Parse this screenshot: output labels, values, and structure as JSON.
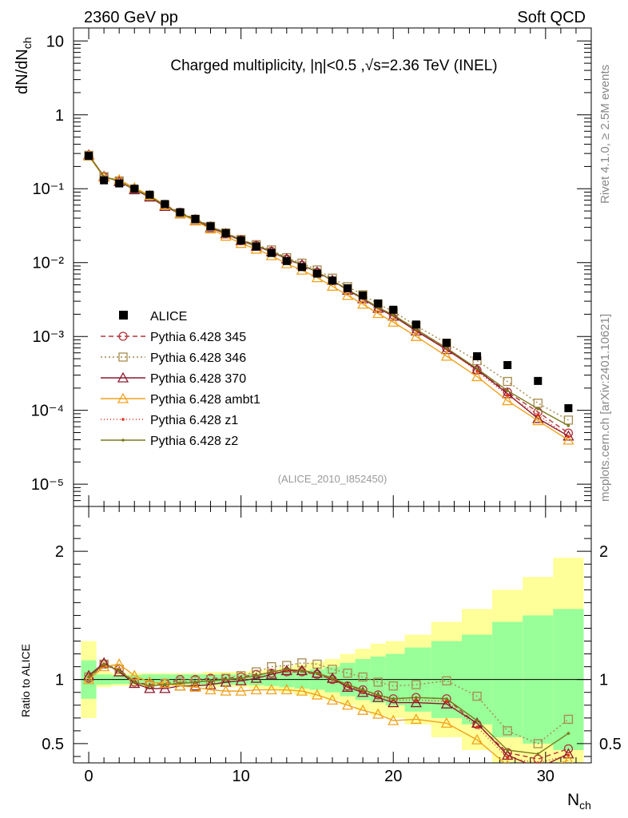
{
  "header": {
    "left": "2360 GeV pp",
    "right": "Soft QCD"
  },
  "side_text": {
    "top": "Rivet 4.1.0, ≥ 2.5M events",
    "bottom": "mcplots.cern.ch [arXiv:2401.10621]"
  },
  "chart_data": {
    "type": "line",
    "title": "Charged multiplicity, |η|<0.5 ,√s=2.36 TeV (INEL)",
    "analysis_id": "(ALICE_2010_I852450)",
    "xlabel": "N",
    "xlabel_sub": "ch",
    "ylabel": "dN/dN",
    "ylabel_sub": "ch",
    "ratio_ylabel": "Ratio to ALICE",
    "xlim": [
      -1,
      33
    ],
    "ylim": [
      5e-06,
      15
    ],
    "ratio_ylim": [
      0.35,
      2.35
    ],
    "x": [
      0,
      1,
      2,
      3,
      4,
      5,
      6,
      7,
      8,
      9,
      10,
      11,
      12,
      13,
      14,
      15,
      16,
      17,
      18,
      19,
      20,
      21.5,
      23.5,
      25.5,
      27.5,
      29.5,
      31.5
    ],
    "x_ticks": [
      "0",
      "10",
      "20",
      "30"
    ],
    "y_ticks": [
      "10",
      "1",
      "10⁻¹",
      "10⁻²",
      "10⁻³",
      "10⁻⁴",
      "10⁻⁵"
    ],
    "ratio_ticks": [
      "0.5",
      "1",
      "2"
    ],
    "data": {
      "name": "ALICE",
      "values": [
        0.278,
        0.13,
        0.118,
        0.1,
        0.083,
        0.062,
        0.048,
        0.039,
        0.031,
        0.025,
        0.02,
        0.0165,
        0.0135,
        0.0105,
        0.0087,
        0.0071,
        0.0057,
        0.0045,
        0.0036,
        0.0028,
        0.0023,
        0.00145,
        0.00082,
        0.00054,
        0.00041,
        0.00025,
        0.000107
      ],
      "band_inner": [
        0.15,
        0.04,
        0.035,
        0.035,
        0.04,
        0.04,
        0.04,
        0.04,
        0.04,
        0.04,
        0.04,
        0.045,
        0.05,
        0.06,
        0.07,
        0.08,
        0.1,
        0.13,
        0.16,
        0.18,
        0.2,
        0.25,
        0.3,
        0.35,
        0.45,
        0.5,
        0.55
      ],
      "band_outer": [
        0.3,
        0.06,
        0.05,
        0.05,
        0.05,
        0.05,
        0.05,
        0.05,
        0.06,
        0.06,
        0.06,
        0.07,
        0.08,
        0.1,
        0.12,
        0.14,
        0.16,
        0.2,
        0.24,
        0.28,
        0.3,
        0.35,
        0.45,
        0.55,
        0.7,
        0.8,
        0.95
      ]
    },
    "series": [
      {
        "name": "Pythia 6.428 345",
        "color": "#b2333a",
        "dash": "6,4",
        "marker": "circle",
        "ratio": [
          1.01,
          1.12,
          1.08,
          0.98,
          0.96,
          0.97,
          1.0,
          1.0,
          1.01,
          1.01,
          1.02,
          1.04,
          1.05,
          1.06,
          1.06,
          1.04,
          1.0,
          0.95,
          0.92,
          0.88,
          0.85,
          0.86,
          0.85,
          0.65,
          0.43,
          0.38,
          0.46
        ]
      },
      {
        "name": "Pythia 6.428 346",
        "color": "#a68a4d",
        "dash": "2,3",
        "marker": "square",
        "ratio": [
          1.02,
          1.12,
          1.08,
          0.97,
          0.96,
          0.97,
          0.98,
          0.99,
          1.0,
          1.01,
          1.03,
          1.06,
          1.1,
          1.11,
          1.13,
          1.12,
          1.08,
          1.05,
          1.02,
          0.98,
          0.95,
          0.96,
          0.99,
          0.87,
          0.6,
          0.5,
          0.69
        ]
      },
      {
        "name": "Pythia 6.428 370",
        "color": "#8a1a2e",
        "dash": "",
        "marker": "triangle",
        "ratio": [
          1.03,
          1.13,
          1.06,
          0.97,
          0.93,
          0.93,
          0.95,
          0.95,
          0.96,
          0.98,
          0.99,
          1.01,
          1.04,
          1.07,
          1.07,
          1.05,
          1.01,
          0.94,
          0.9,
          0.86,
          0.82,
          0.82,
          0.81,
          0.66,
          0.41,
          0.31,
          0.42
        ]
      },
      {
        "name": "Pythia 6.428 ambt1",
        "color": "#f0a21e",
        "dash": "",
        "marker": "triangle",
        "ratio": [
          1.0,
          1.1,
          1.12,
          1.03,
          0.98,
          0.97,
          0.95,
          0.94,
          0.92,
          0.91,
          0.91,
          0.92,
          0.92,
          0.92,
          0.91,
          0.88,
          0.84,
          0.8,
          0.76,
          0.73,
          0.68,
          0.69,
          0.66,
          0.53,
          0.33,
          0.29,
          0.37
        ]
      },
      {
        "name": "Pythia 6.428 z1",
        "color": "#e0301e",
        "dash": "1,3",
        "marker": "dot",
        "ratio": [
          1.02,
          1.11,
          1.07,
          0.98,
          0.95,
          0.96,
          0.97,
          0.98,
          0.99,
          1.0,
          1.01,
          1.03,
          1.06,
          1.07,
          1.07,
          1.05,
          1.0,
          0.95,
          0.91,
          0.87,
          0.84,
          0.84,
          0.83,
          0.63,
          0.39,
          0.35,
          0.41
        ]
      },
      {
        "name": "Pythia 6.428 z2",
        "color": "#7a7a1c",
        "dash": "",
        "marker": "dot",
        "ratio": [
          1.02,
          1.12,
          1.07,
          0.98,
          0.95,
          0.96,
          0.97,
          0.98,
          0.99,
          1.0,
          1.01,
          1.03,
          1.06,
          1.08,
          1.07,
          1.05,
          1.01,
          0.96,
          0.92,
          0.88,
          0.85,
          0.86,
          0.85,
          0.68,
          0.45,
          0.42,
          0.58
        ]
      }
    ]
  }
}
